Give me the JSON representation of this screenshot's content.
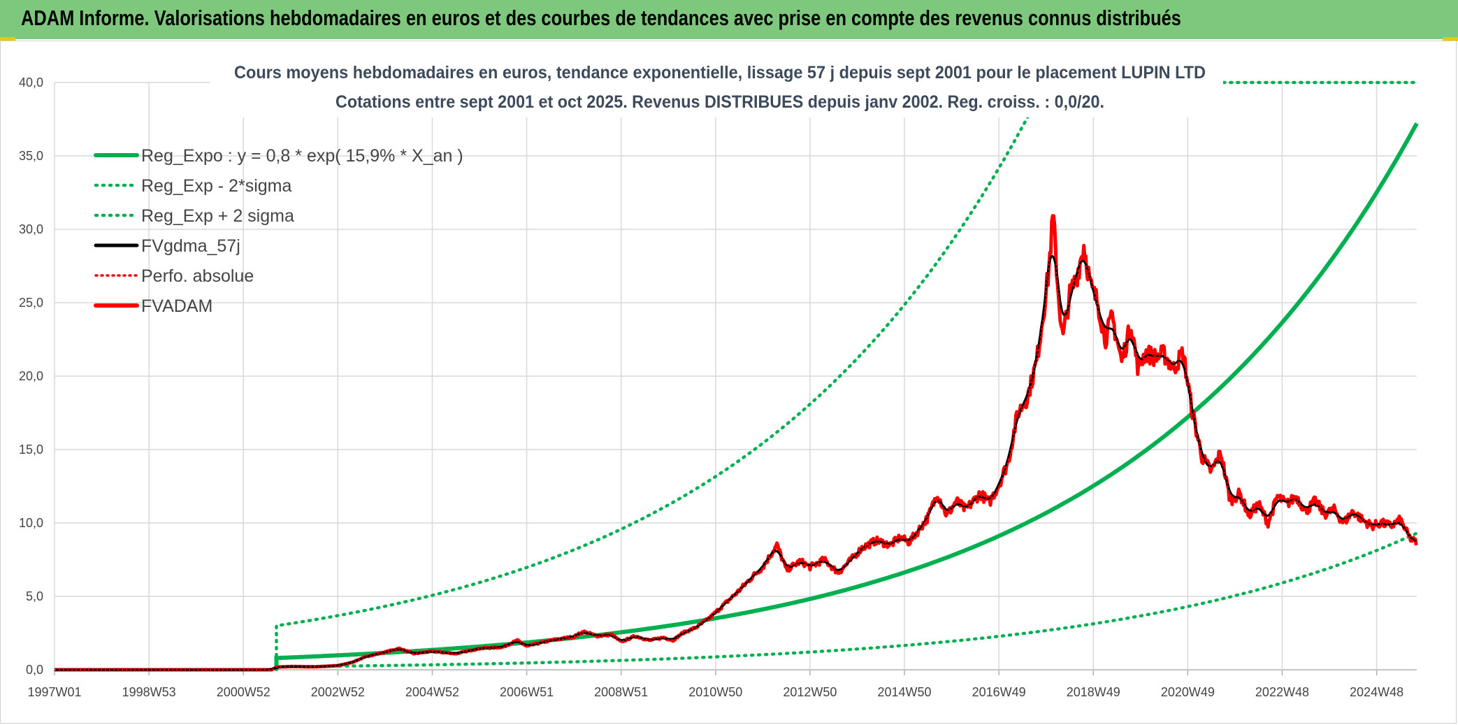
{
  "banner": {
    "title": "ADAM Informe. Valorisations hebdomadaires en euros et des courbes de tendances avec prise en compte des revenus connus distribués"
  },
  "colors": {
    "banner_bg": "#7dc87c",
    "corner": "#f5c400",
    "green": "#00b050",
    "black": "#000000",
    "red": "#ff0000",
    "grid": "#d9d9d9"
  },
  "chart_data": {
    "type": "line",
    "title": "Cours moyens hebdomadaires en euros, tendance exponentielle, lissage 57 j depuis sept 2001 pour le placement LUPIN LTD",
    "subtitle": "Cotations entre sept 2001 et oct 2025. Revenus DISTRIBUES depuis janv 2002. Reg. croiss. : 0,0/20.",
    "x_tick_labels": [
      "1997W01",
      "1998W53",
      "2000W52",
      "2002W52",
      "2004W52",
      "2006W51",
      "2008W51",
      "2010W50",
      "2012W50",
      "2014W50",
      "2016W49",
      "2018W49",
      "2020W49",
      "2022W48",
      "2024W48"
    ],
    "x_tick_years": [
      1997.0,
      1999.0,
      2001.0,
      2003.0,
      2005.0,
      2007.0,
      2009.0,
      2011.0,
      2013.0,
      2015.0,
      2017.0,
      2019.0,
      2021.0,
      2023.0,
      2025.0
    ],
    "x_range": [
      1997.0,
      2025.85
    ],
    "ylim": [
      0,
      40
    ],
    "y_ticks": [
      0,
      5,
      10,
      15,
      20,
      25,
      30,
      35,
      40
    ],
    "y_tick_labels": [
      "0,0",
      "5,0",
      "10,0",
      "15,0",
      "20,0",
      "25,0",
      "30,0",
      "35,0",
      "40,0"
    ],
    "grid": true,
    "legend_position": "top-left",
    "legend": [
      {
        "key": "reg_expo",
        "label": "Reg_Expo : y = 0,8 * exp( 15,9% *  X_an )"
      },
      {
        "key": "reg_minus",
        "label": "Reg_Exp - 2*sigma"
      },
      {
        "key": "reg_plus",
        "label": "Reg_Exp + 2 sigma"
      },
      {
        "key": "fvgdma",
        "label": "FVgdma_57j"
      },
      {
        "key": "perfo",
        "label": "Perfo. absolue"
      },
      {
        "key": "fvadam",
        "label": "FVADAM"
      }
    ],
    "regression": {
      "start_year": 2001.7,
      "end_year": 2025.85,
      "a": 0.8,
      "rate": 0.159,
      "upper_factor": 3.75,
      "lower_factor": 0.25,
      "minus_start": 2001.7
    },
    "series": [
      {
        "name": "FVADAM",
        "points": [
          [
            1997.0,
            0.0
          ],
          [
            2001.6,
            0.0
          ],
          [
            2001.7,
            0.18
          ],
          [
            2002.0,
            0.22
          ],
          [
            2002.5,
            0.2
          ],
          [
            2003.0,
            0.28
          ],
          [
            2003.3,
            0.5
          ],
          [
            2003.6,
            0.9
          ],
          [
            2004.0,
            1.2
          ],
          [
            2004.3,
            1.45
          ],
          [
            2004.6,
            1.1
          ],
          [
            2005.0,
            1.25
          ],
          [
            2005.5,
            1.1
          ],
          [
            2006.0,
            1.45
          ],
          [
            2006.5,
            1.55
          ],
          [
            2006.8,
            2.0
          ],
          [
            2007.0,
            1.6
          ],
          [
            2007.5,
            2.0
          ],
          [
            2008.0,
            2.25
          ],
          [
            2008.2,
            2.6
          ],
          [
            2008.5,
            2.3
          ],
          [
            2008.8,
            2.4
          ],
          [
            2009.0,
            1.9
          ],
          [
            2009.3,
            2.3
          ],
          [
            2009.6,
            2.0
          ],
          [
            2009.9,
            2.2
          ],
          [
            2010.1,
            2.0
          ],
          [
            2010.3,
            2.5
          ],
          [
            2010.6,
            2.9
          ],
          [
            2010.9,
            3.6
          ],
          [
            2011.2,
            4.5
          ],
          [
            2011.5,
            5.4
          ],
          [
            2011.8,
            6.4
          ],
          [
            2012.0,
            7.0
          ],
          [
            2012.3,
            8.5
          ],
          [
            2012.5,
            6.8
          ],
          [
            2012.8,
            7.4
          ],
          [
            2013.0,
            7.0
          ],
          [
            2013.3,
            7.5
          ],
          [
            2013.6,
            6.6
          ],
          [
            2013.9,
            7.6
          ],
          [
            2014.1,
            8.3
          ],
          [
            2014.4,
            8.8
          ],
          [
            2014.7,
            8.5
          ],
          [
            2014.9,
            9.0
          ],
          [
            2015.1,
            8.7
          ],
          [
            2015.3,
            9.5
          ],
          [
            2015.5,
            10.4
          ],
          [
            2015.7,
            12.0
          ],
          [
            2015.9,
            10.5
          ],
          [
            2016.1,
            11.5
          ],
          [
            2016.3,
            10.9
          ],
          [
            2016.6,
            12.0
          ],
          [
            2016.8,
            11.4
          ],
          [
            2017.0,
            12.6
          ],
          [
            2017.2,
            14.2
          ],
          [
            2017.4,
            17.5
          ],
          [
            2017.6,
            18.5
          ],
          [
            2017.8,
            21.0
          ],
          [
            2017.95,
            24.5
          ],
          [
            2018.05,
            27.0
          ],
          [
            2018.15,
            31.0
          ],
          [
            2018.25,
            26.0
          ],
          [
            2018.35,
            22.5
          ],
          [
            2018.5,
            25.5
          ],
          [
            2018.65,
            26.8
          ],
          [
            2018.8,
            28.9
          ],
          [
            2018.95,
            26.0
          ],
          [
            2019.1,
            25.0
          ],
          [
            2019.25,
            22.5
          ],
          [
            2019.4,
            24.0
          ],
          [
            2019.6,
            21.0
          ],
          [
            2019.8,
            23.5
          ],
          [
            2019.95,
            20.5
          ],
          [
            2020.1,
            21.6
          ],
          [
            2020.3,
            21.3
          ],
          [
            2020.5,
            21.5
          ],
          [
            2020.7,
            20.5
          ],
          [
            2020.9,
            21.6
          ],
          [
            2021.1,
            17.5
          ],
          [
            2021.3,
            14.5
          ],
          [
            2021.5,
            13.5
          ],
          [
            2021.7,
            14.8
          ],
          [
            2021.9,
            11.5
          ],
          [
            2022.1,
            12.0
          ],
          [
            2022.3,
            10.5
          ],
          [
            2022.5,
            11.3
          ],
          [
            2022.7,
            10.0
          ],
          [
            2022.9,
            11.8
          ],
          [
            2023.1,
            11.3
          ],
          [
            2023.3,
            11.8
          ],
          [
            2023.5,
            10.8
          ],
          [
            2023.7,
            11.5
          ],
          [
            2023.9,
            10.6
          ],
          [
            2024.1,
            10.9
          ],
          [
            2024.3,
            10.0
          ],
          [
            2024.5,
            10.8
          ],
          [
            2024.7,
            10.2
          ],
          [
            2024.9,
            9.8
          ],
          [
            2025.1,
            10.0
          ],
          [
            2025.3,
            9.8
          ],
          [
            2025.5,
            10.2
          ],
          [
            2025.7,
            9.0
          ],
          [
            2025.85,
            8.6
          ]
        ]
      }
    ]
  }
}
